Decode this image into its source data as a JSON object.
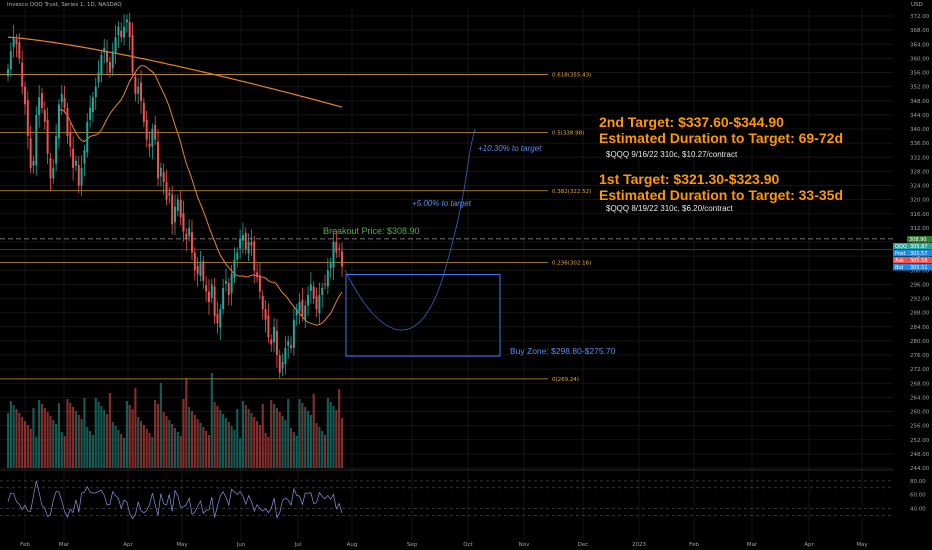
{
  "header": {
    "title": "Invesco QQQ Trust, Series 1, 1D, NASDAQ"
  },
  "currency": "USD",
  "annotations": {
    "target2": "2nd Target: $337.60-$344.90",
    "duration2": "Estimated Duration to Target: 69-72d",
    "option2": "$QQQ 9/16/22 310c, $10.27/contract",
    "target1": "1st Target: $321.30-$323.90",
    "duration1": "Estimated Duration to Target: 33-35d",
    "option1": "$QQQ 8/19/22 310c, $6.20/contract",
    "breakout": "Breakout Price: $308.90",
    "buy_zone": "Buy Zone: $298.80-$275.70",
    "pct2": "+10.30% to target",
    "pct1": "+5.00% to target"
  },
  "colors": {
    "up": "#26a69a",
    "down": "#ef5350",
    "ma_fast": "#e8832a",
    "ma_slow": "#e8832a",
    "fib": "#e3a83b",
    "target": "#ff9800",
    "breakout": "#4caf50",
    "zone": "#3d7bf0",
    "rsi": "#8f8fe0"
  },
  "chart_data": {
    "type": "candlestick",
    "title": "Invesco QQQ Trust, Series 1, 1D, NASDAQ",
    "y_range": [
      244,
      374
    ],
    "y_ticks": [
      372,
      368,
      364,
      360,
      356,
      352,
      348,
      344,
      340,
      336,
      332,
      328,
      324,
      320,
      316,
      312,
      308,
      304,
      300,
      296,
      292,
      288,
      284,
      280,
      276,
      272,
      268,
      264,
      260,
      256,
      252,
      248,
      244
    ],
    "x_ticks": [
      "Feb",
      "Mar",
      "Apr",
      "May",
      "Jun",
      "Jul",
      "Aug",
      "Sep",
      "Oct",
      "Nov",
      "Dec",
      "2023",
      "Feb",
      "Mar",
      "Apr",
      "May"
    ],
    "fib_levels": [
      {
        "label": "0.618(355.43)",
        "price": 355.43
      },
      {
        "label": "0.5(338.98)",
        "price": 338.98
      },
      {
        "label": "0.382(322.52)",
        "price": 322.52
      },
      {
        "label": "0.236(302.16)",
        "price": 302.16
      },
      {
        "label": "0(269.24)",
        "price": 269.24
      }
    ],
    "breakout_price": 308.9,
    "buy_zone": [
      298.8,
      275.7
    ],
    "price_badges": [
      {
        "label": "308.90",
        "color": "#2e7d32"
      },
      {
        "label": "QQQ",
        "color": "#26a69a",
        "value": "305.87"
      },
      {
        "label": "Post",
        "color": "#1e88e5",
        "value": "305.57"
      },
      {
        "label": "Ask",
        "color": "#ef5350",
        "value": "305.56"
      },
      {
        "label": "Bid",
        "color": "#1e88e5",
        "value": "305.51"
      }
    ],
    "closes": [
      357,
      362,
      366,
      364,
      360,
      352,
      347,
      338,
      329,
      331,
      344,
      349,
      346,
      342,
      333,
      326,
      329,
      338,
      347,
      350,
      346,
      338,
      335,
      329,
      331,
      324,
      329,
      334,
      342,
      346,
      349,
      352,
      356,
      361,
      363,
      359,
      356,
      362,
      366,
      369,
      366,
      369,
      371,
      366,
      356,
      350,
      352,
      348,
      342,
      337,
      335,
      340,
      337,
      326,
      329,
      325,
      320,
      322,
      313,
      318,
      320,
      315,
      311,
      309,
      312,
      305,
      300,
      299,
      302,
      297,
      294,
      291,
      296,
      287,
      285,
      289,
      295,
      297,
      293,
      299,
      303,
      305,
      309,
      310,
      306,
      308,
      307,
      300,
      298,
      294,
      289,
      286,
      281,
      279,
      284,
      276,
      271,
      274,
      278,
      280,
      278,
      286,
      289,
      291,
      287,
      290,
      293,
      296,
      292,
      289,
      293,
      295,
      296,
      300,
      302,
      308,
      305,
      306,
      301
    ],
    "rsi": {
      "levels": [
        80,
        70,
        40,
        30
      ],
      "ticks": [
        "80.00",
        "60.00",
        "40.00"
      ]
    }
  }
}
